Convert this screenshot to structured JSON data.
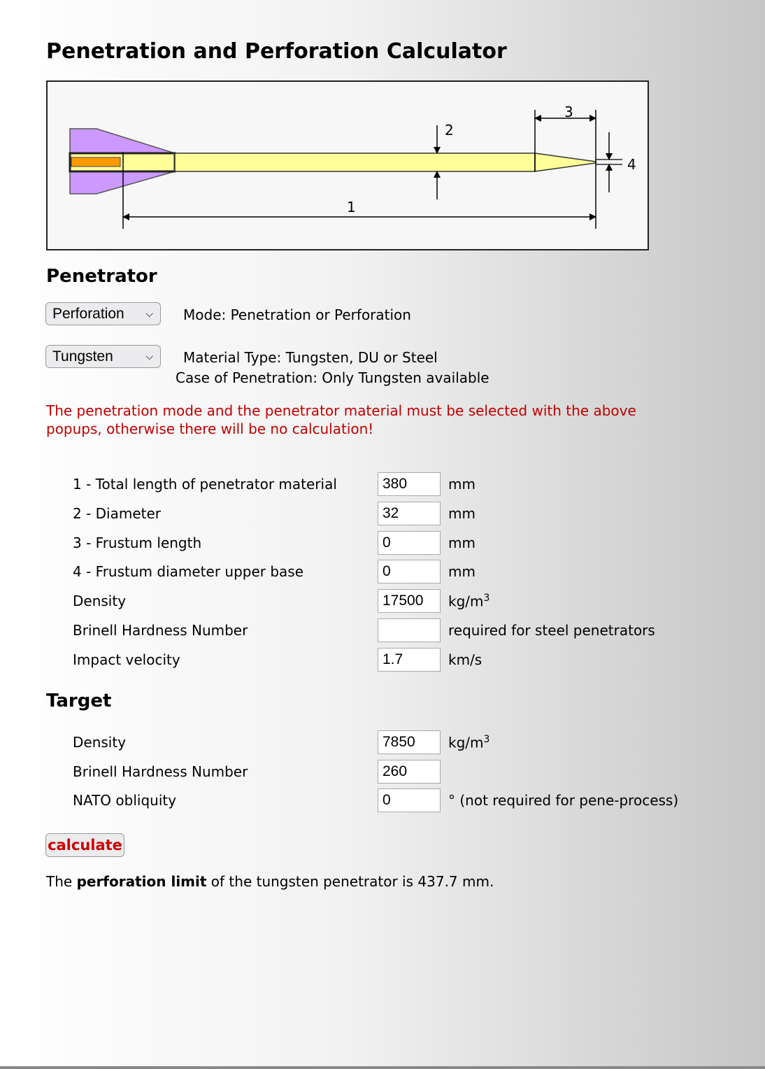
{
  "title": "Penetration and Perforation Calculator",
  "diagram": {
    "labels": [
      "1",
      "2",
      "3",
      "4"
    ],
    "colors": {
      "fins": "#cc99ff",
      "rod": "#ffff99",
      "core": "#ff9900"
    }
  },
  "penetrator": {
    "heading": "Penetrator",
    "mode_select": {
      "value": "Perforation",
      "description": "Mode: Penetration or Perforation"
    },
    "material_select": {
      "value": "Tungsten",
      "description": "Material Type: Tungsten, DU or Steel",
      "note": "Case of Penetration: Only Tungsten available"
    },
    "warning": "The penetration mode and the penetrator material must be selected with the above popups, otherwise there will be no calculation!",
    "fields": [
      {
        "label": "1 - Total length of penetrator material",
        "value": "380",
        "unit": "mm"
      },
      {
        "label": "2 - Diameter",
        "value": "32",
        "unit": "mm"
      },
      {
        "label": "3 - Frustum length",
        "value": "0",
        "unit": "mm"
      },
      {
        "label": "4 - Frustum diameter upper base",
        "value": "0",
        "unit": "mm"
      },
      {
        "label": "Density",
        "value": "17500",
        "unit": "kg/m",
        "unit_sup": "3"
      },
      {
        "label": "Brinell Hardness Number",
        "value": "",
        "unit": "required for steel penetrators"
      },
      {
        "label": "Impact velocity",
        "value": "1.7",
        "unit": "km/s"
      }
    ]
  },
  "target": {
    "heading": "Target",
    "fields": [
      {
        "label": "Density",
        "value": "7850",
        "unit": "kg/m",
        "unit_sup": "3"
      },
      {
        "label": "Brinell Hardness Number",
        "value": "260",
        "unit": ""
      },
      {
        "label": "NATO obliquity",
        "value": "0",
        "unit": "° (not required for pene-process)"
      }
    ]
  },
  "calculate_label": "calculate",
  "result": {
    "prefix": "The ",
    "bold": "perforation limit",
    "suffix": " of the tungsten penetrator is 437.7 mm."
  },
  "accent_color": "#c00000"
}
